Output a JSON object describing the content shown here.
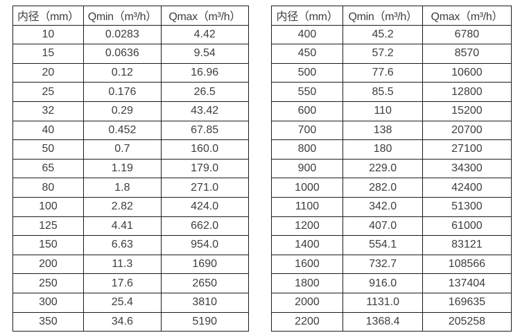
{
  "page": {
    "background_color": "#ffffff",
    "text_color": "#3d3d3d",
    "border_color": "#1b1b1b"
  },
  "tables": [
    {
      "name": "flow-spec-table-small-diameters",
      "headers": [
        "内径（mm）",
        "Qmin（m³/h）",
        "Qmax（m³/h）"
      ],
      "rows": [
        [
          "10",
          "0.0283",
          "4.42"
        ],
        [
          "15",
          "0.0636",
          "9.54"
        ],
        [
          "20",
          "0.12",
          "16.96"
        ],
        [
          "25",
          "0.176",
          "26.5"
        ],
        [
          "32",
          "0.29",
          "43.42"
        ],
        [
          "40",
          "0.452",
          "67.85"
        ],
        [
          "50",
          "0.7",
          "160.0"
        ],
        [
          "65",
          "1.19",
          "179.0"
        ],
        [
          "80",
          "1.8",
          "271.0"
        ],
        [
          "100",
          "2.82",
          "424.0"
        ],
        [
          "125",
          "4.41",
          "662.0"
        ],
        [
          "150",
          "6.63",
          "954.0"
        ],
        [
          "200",
          "11.3",
          "1690"
        ],
        [
          "250",
          "17.6",
          "2650"
        ],
        [
          "300",
          "25.4",
          "3810"
        ],
        [
          "350",
          "34.6",
          "5190"
        ]
      ]
    },
    {
      "name": "flow-spec-table-large-diameters",
      "headers": [
        "内径（mm）",
        "Qmin（m³/h）",
        "Qmax（m³/h）"
      ],
      "rows": [
        [
          "400",
          "45.2",
          "6780"
        ],
        [
          "450",
          "57.2",
          "8570"
        ],
        [
          "500",
          "77.6",
          "10600"
        ],
        [
          "550",
          "85.5",
          "12800"
        ],
        [
          "600",
          "110",
          "15200"
        ],
        [
          "700",
          "138",
          "20700"
        ],
        [
          "800",
          "180",
          "27100"
        ],
        [
          "900",
          "229.0",
          "34300"
        ],
        [
          "1000",
          "282.0",
          "42400"
        ],
        [
          "1100",
          "342.0",
          "51300"
        ],
        [
          "1200",
          "407.0",
          "61000"
        ],
        [
          "1400",
          "554.1",
          "83121"
        ],
        [
          "1600",
          "732.7",
          "108566"
        ],
        [
          "1800",
          "916.0",
          "137404"
        ],
        [
          "2000",
          "1131.0",
          "169635"
        ],
        [
          "2200",
          "1368.4",
          "205258"
        ]
      ]
    }
  ]
}
